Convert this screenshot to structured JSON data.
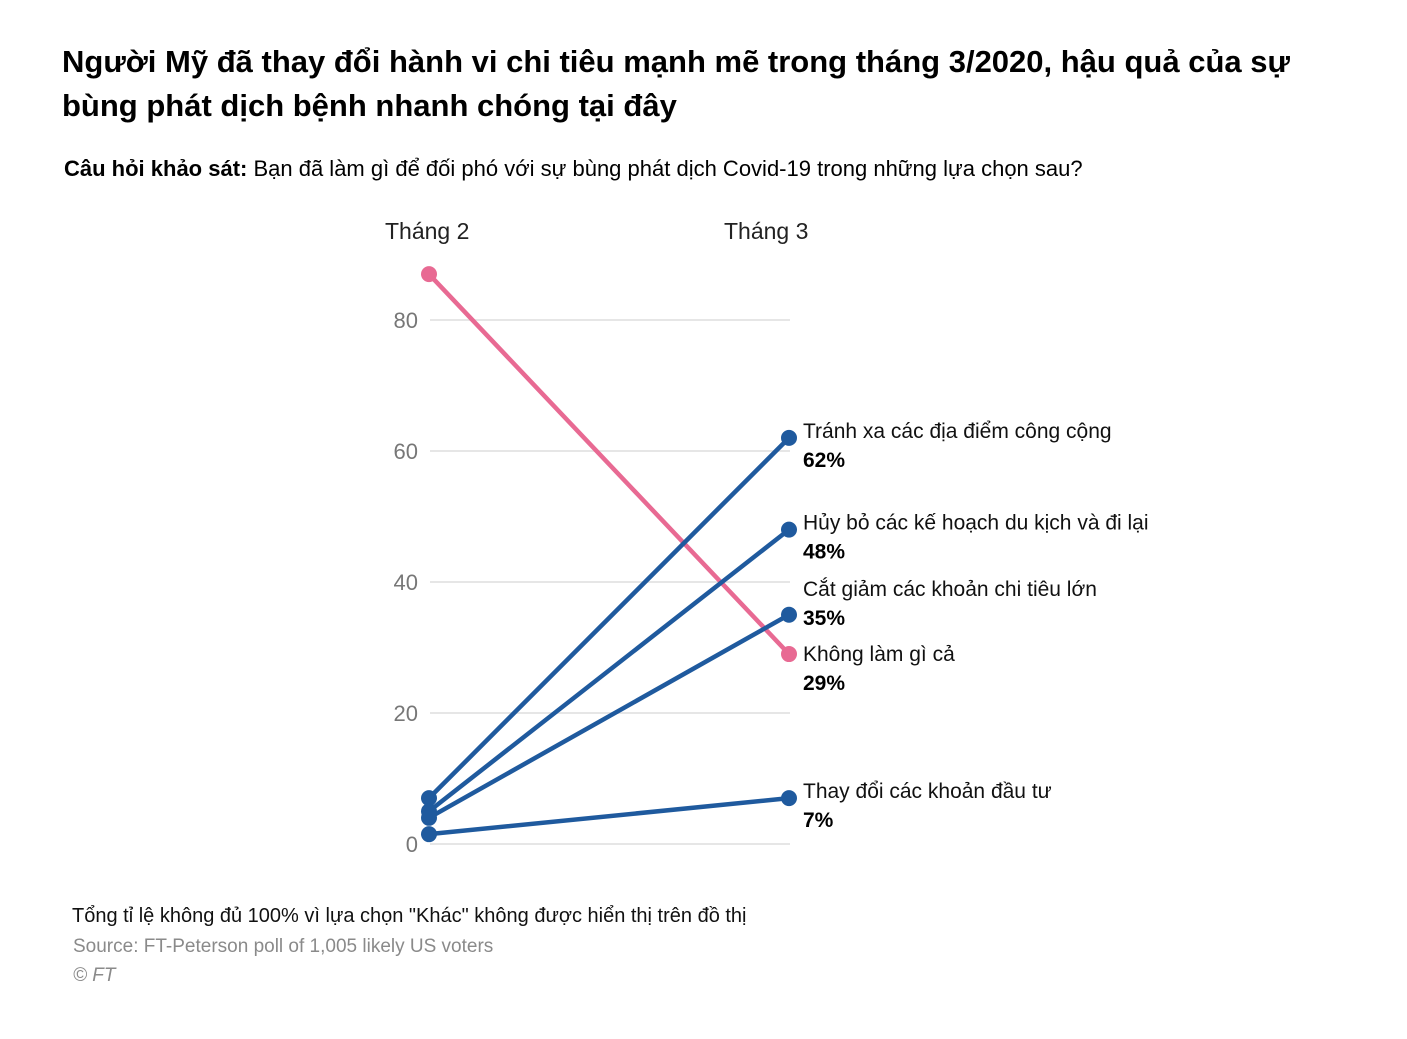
{
  "title": "Người Mỹ đã thay đổi hành vi chi tiêu mạnh mẽ trong tháng 3/2020, hậu quả của sự bùng phát dịch bệnh nhanh chóng tại đây",
  "question": {
    "label": "Câu hỏi khảo sát:",
    "text": " Bạn đã làm gì để đối phó với sự bùng phát dịch Covid-19 trong những lựa chọn sau?"
  },
  "footer": {
    "note": "Tổng tỉ lệ không đủ 100% vì lựa chọn \"Khác\" không được hiển thị trên đồ thị",
    "source": "Source: FT-Peterson poll of 1,005 likely US voters",
    "copyright": "© FT"
  },
  "chart_data": {
    "type": "line",
    "categories": [
      "Tháng 2",
      "Tháng 3"
    ],
    "ylim": [
      0,
      80
    ],
    "yticks": [
      0,
      20,
      40,
      60,
      80
    ],
    "grid": true,
    "series": [
      {
        "name": "Tránh xa các địa điểm công cộng",
        "values": [
          7,
          62
        ],
        "value_label": "62%",
        "color": "#1f5a9e"
      },
      {
        "name": "Hủy bỏ các kế hoạch du kịch và đi lại",
        "values": [
          5,
          48
        ],
        "value_label": "48%",
        "color": "#1f5a9e"
      },
      {
        "name": "Cắt giảm các khoản chi tiêu lớn",
        "values": [
          4,
          35
        ],
        "value_label": "35%",
        "color": "#1f5a9e"
      },
      {
        "name": "Không làm gì cả",
        "values": [
          87,
          29
        ],
        "value_label": "29%",
        "color": "#e86a93"
      },
      {
        "name": "Thay đổi các khoản đầu tư",
        "values": [
          1.5,
          7
        ],
        "value_label": "7%",
        "color": "#1f5a9e"
      }
    ]
  }
}
